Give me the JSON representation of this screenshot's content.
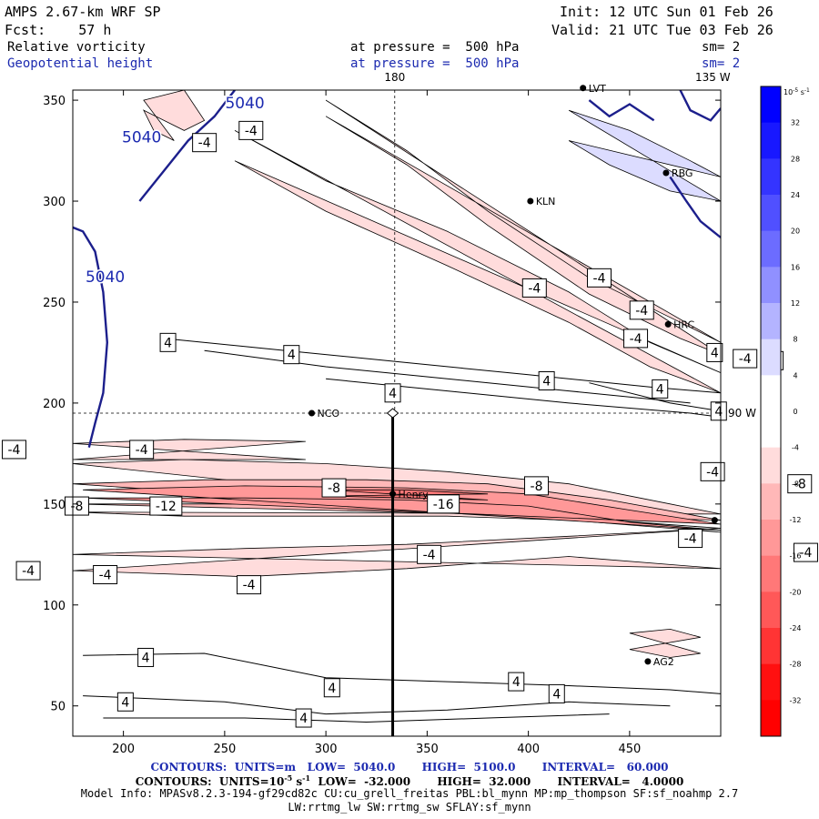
{
  "header": {
    "model": "AMPS 2.67-km WRF SP",
    "init": "Init: 12 UTC Sun 01 Feb 26",
    "fcst": "Fcst:    57 h",
    "valid": "Valid: 21 UTC Tue 03 Feb 26",
    "field1_name": "Relative vorticity",
    "field1_level": "at pressure =  500 hPa",
    "field1_sm": "sm= 2",
    "field2_name": "Geopotential height",
    "field2_level": "at pressure =  500 hPa",
    "field2_sm": "sm= 2"
  },
  "footer": {
    "contours_height": "CONTOURS:  UNITS=m   LOW=  5040.0       HIGH=  5100.0       INTERVAL=   60.000",
    "contours_vort_pre": "CONTOURS:  UNITS=10",
    "contours_vort_exp": "-5",
    "contours_vort_post": " s",
    "contours_vort_exp2": "-1",
    "contours_vort_rest": "  LOW=  -32.000       HIGH=  32.000       INTERVAL=   4.0000",
    "model_info": "Model Info: MPASv8.2.3-194-gf29cd82c CU:cu_grell_freitas PBL:bl_mynn MP:mp_thompson SF:sf_noahmp 2.7",
    "model_info2": "LW:rrtmg_lw SW:rrtmg_sw SFLAY:sf_mynn"
  },
  "chart_data": {
    "type": "contour",
    "x_ticks": [
      "200",
      "250",
      "300",
      "350",
      "400",
      "450"
    ],
    "x_tick_values": [
      200,
      250,
      300,
      350,
      400,
      450
    ],
    "y_ticks": [
      "50",
      "100",
      "150",
      "200",
      "250",
      "300",
      "350"
    ],
    "y_tick_values": [
      50,
      100,
      150,
      200,
      250,
      300,
      350
    ],
    "xlim": [
      175,
      495
    ],
    "ylim": [
      35,
      355
    ],
    "grid_lines": {
      "meridian_label": "180",
      "meridian_x": 334,
      "parallel_label": "90 W",
      "parallel_y": 195,
      "corner_label": "135 W"
    },
    "colorbar": {
      "unit_base": "10",
      "unit_exp": "-5",
      "unit_s": " s",
      "unit_s_exp": "-1",
      "levels": [
        "32",
        "28",
        "24",
        "20",
        "16",
        "12",
        "8",
        "4",
        "0",
        "-4",
        "-8",
        "-12",
        "-16",
        "-20",
        "-24",
        "-28",
        "-32"
      ],
      "colors": [
        "#0000ff",
        "#1818ff",
        "#3434ff",
        "#5050ff",
        "#6c6cff",
        "#9090ff",
        "#b4b4ff",
        "#dcdcff",
        "#ffffff",
        "#ffffff",
        "#ffdcdc",
        "#ffb8b8",
        "#ff9898",
        "#ff7878",
        "#ff5858",
        "#ff3434",
        "#ff1010",
        "#ff0000"
      ]
    },
    "stations": [
      {
        "name": "LVT",
        "x": 427,
        "y": 356
      },
      {
        "name": "RBG",
        "x": 468,
        "y": 314
      },
      {
        "name": "KLN",
        "x": 401,
        "y": 300
      },
      {
        "name": "HRC",
        "x": 469,
        "y": 239
      },
      {
        "name": "NCO",
        "x": 293,
        "y": 195
      },
      {
        "name": "Henry",
        "x": 333,
        "y": 155
      },
      {
        "name": "AG2",
        "x": 459,
        "y": 72
      },
      {
        "name": "",
        "x": 492,
        "y": 142
      }
    ],
    "height_labels": [
      {
        "text": "5040",
        "x": 260,
        "y": 346
      },
      {
        "text": "5040",
        "x": 209,
        "y": 329
      },
      {
        "text": "5040",
        "x": 191,
        "y": 260
      }
    ],
    "vorticity_labels": [
      {
        "text": "-4",
        "x": 240,
        "y": 329
      },
      {
        "text": "-4",
        "x": 263,
        "y": 335
      },
      {
        "text": "-4",
        "x": 435,
        "y": 262
      },
      {
        "text": "-4",
        "x": 403,
        "y": 257
      },
      {
        "text": "-4",
        "x": 456,
        "y": 246
      },
      {
        "text": "-4",
        "x": 453,
        "y": 232
      },
      {
        "text": "-4",
        "x": 507,
        "y": 222
      },
      {
        "text": "-4",
        "x": 555,
        "y": 198
      },
      {
        "text": "4",
        "x": 222,
        "y": 230
      },
      {
        "text": "4",
        "x": 283,
        "y": 224
      },
      {
        "text": "4",
        "x": 492,
        "y": 225
      },
      {
        "text": "4",
        "x": 522,
        "y": 221
      },
      {
        "text": "4",
        "x": 409,
        "y": 211
      },
      {
        "text": "4",
        "x": 465,
        "y": 207
      },
      {
        "text": "4",
        "x": 333,
        "y": 205
      },
      {
        "text": "4",
        "x": 494,
        "y": 196
      },
      {
        "text": "-4",
        "x": 146,
        "y": 177
      },
      {
        "text": "-4",
        "x": 209,
        "y": 177
      },
      {
        "text": "-4",
        "x": 491,
        "y": 166
      },
      {
        "text": "4",
        "x": 768,
        "y": 167
      },
      {
        "text": "-4",
        "x": 128,
        "y": 160
      },
      {
        "text": "-8",
        "x": 304,
        "y": 158
      },
      {
        "text": "-8",
        "x": 404,
        "y": 159
      },
      {
        "text": "-8",
        "x": 534,
        "y": 160
      },
      {
        "text": "-12",
        "x": 604,
        "y": 155
      },
      {
        "text": "-8",
        "x": 650,
        "y": 155
      },
      {
        "text": "-4",
        "x": 760,
        "y": 152
      },
      {
        "text": "-8",
        "x": 177,
        "y": 149
      },
      {
        "text": "-12",
        "x": 221,
        "y": 149
      },
      {
        "text": "-16",
        "x": 358,
        "y": 150
      },
      {
        "text": "-4",
        "x": 101,
        "y": 148
      },
      {
        "text": "-12",
        "x": 711,
        "y": 144
      },
      {
        "text": "-4",
        "x": 599,
        "y": 142
      },
      {
        "text": "-12",
        "x": 656,
        "y": 142
      },
      {
        "text": "-4",
        "x": 480,
        "y": 133
      },
      {
        "text": "-4",
        "x": 697,
        "y": 133
      },
      {
        "text": "-12",
        "x": 768,
        "y": 129
      },
      {
        "text": "-4",
        "x": 537,
        "y": 126
      },
      {
        "text": "-4",
        "x": 637,
        "y": 126
      },
      {
        "text": "-4",
        "x": 351,
        "y": 125
      },
      {
        "text": "-4",
        "x": 153,
        "y": 117
      },
      {
        "text": "-4",
        "x": 191,
        "y": 115
      },
      {
        "text": "-4",
        "x": 700,
        "y": 117
      },
      {
        "text": "-4",
        "x": 262,
        "y": 110
      },
      {
        "text": "-4",
        "x": 734,
        "y": 110
      },
      {
        "text": "-4",
        "x": 655,
        "y": 82
      },
      {
        "text": "4",
        "x": 211,
        "y": 74
      },
      {
        "text": "4",
        "x": 113,
        "y": 73
      },
      {
        "text": "4",
        "x": 394,
        "y": 62
      },
      {
        "text": "4",
        "x": 303,
        "y": 59
      },
      {
        "text": "4",
        "x": 414,
        "y": 56
      },
      {
        "text": "4",
        "x": 201,
        "y": 52
      },
      {
        "text": "4",
        "x": 635,
        "y": 53
      },
      {
        "text": "-4",
        "x": 743,
        "y": 51
      },
      {
        "text": "-4",
        "x": 565,
        "y": 47
      },
      {
        "text": "-4",
        "x": 604,
        "y": 47
      },
      {
        "text": "4",
        "x": 289,
        "y": 44
      }
    ],
    "section_line": {
      "x": 333,
      "y_from": 195,
      "y_to": 35
    }
  }
}
